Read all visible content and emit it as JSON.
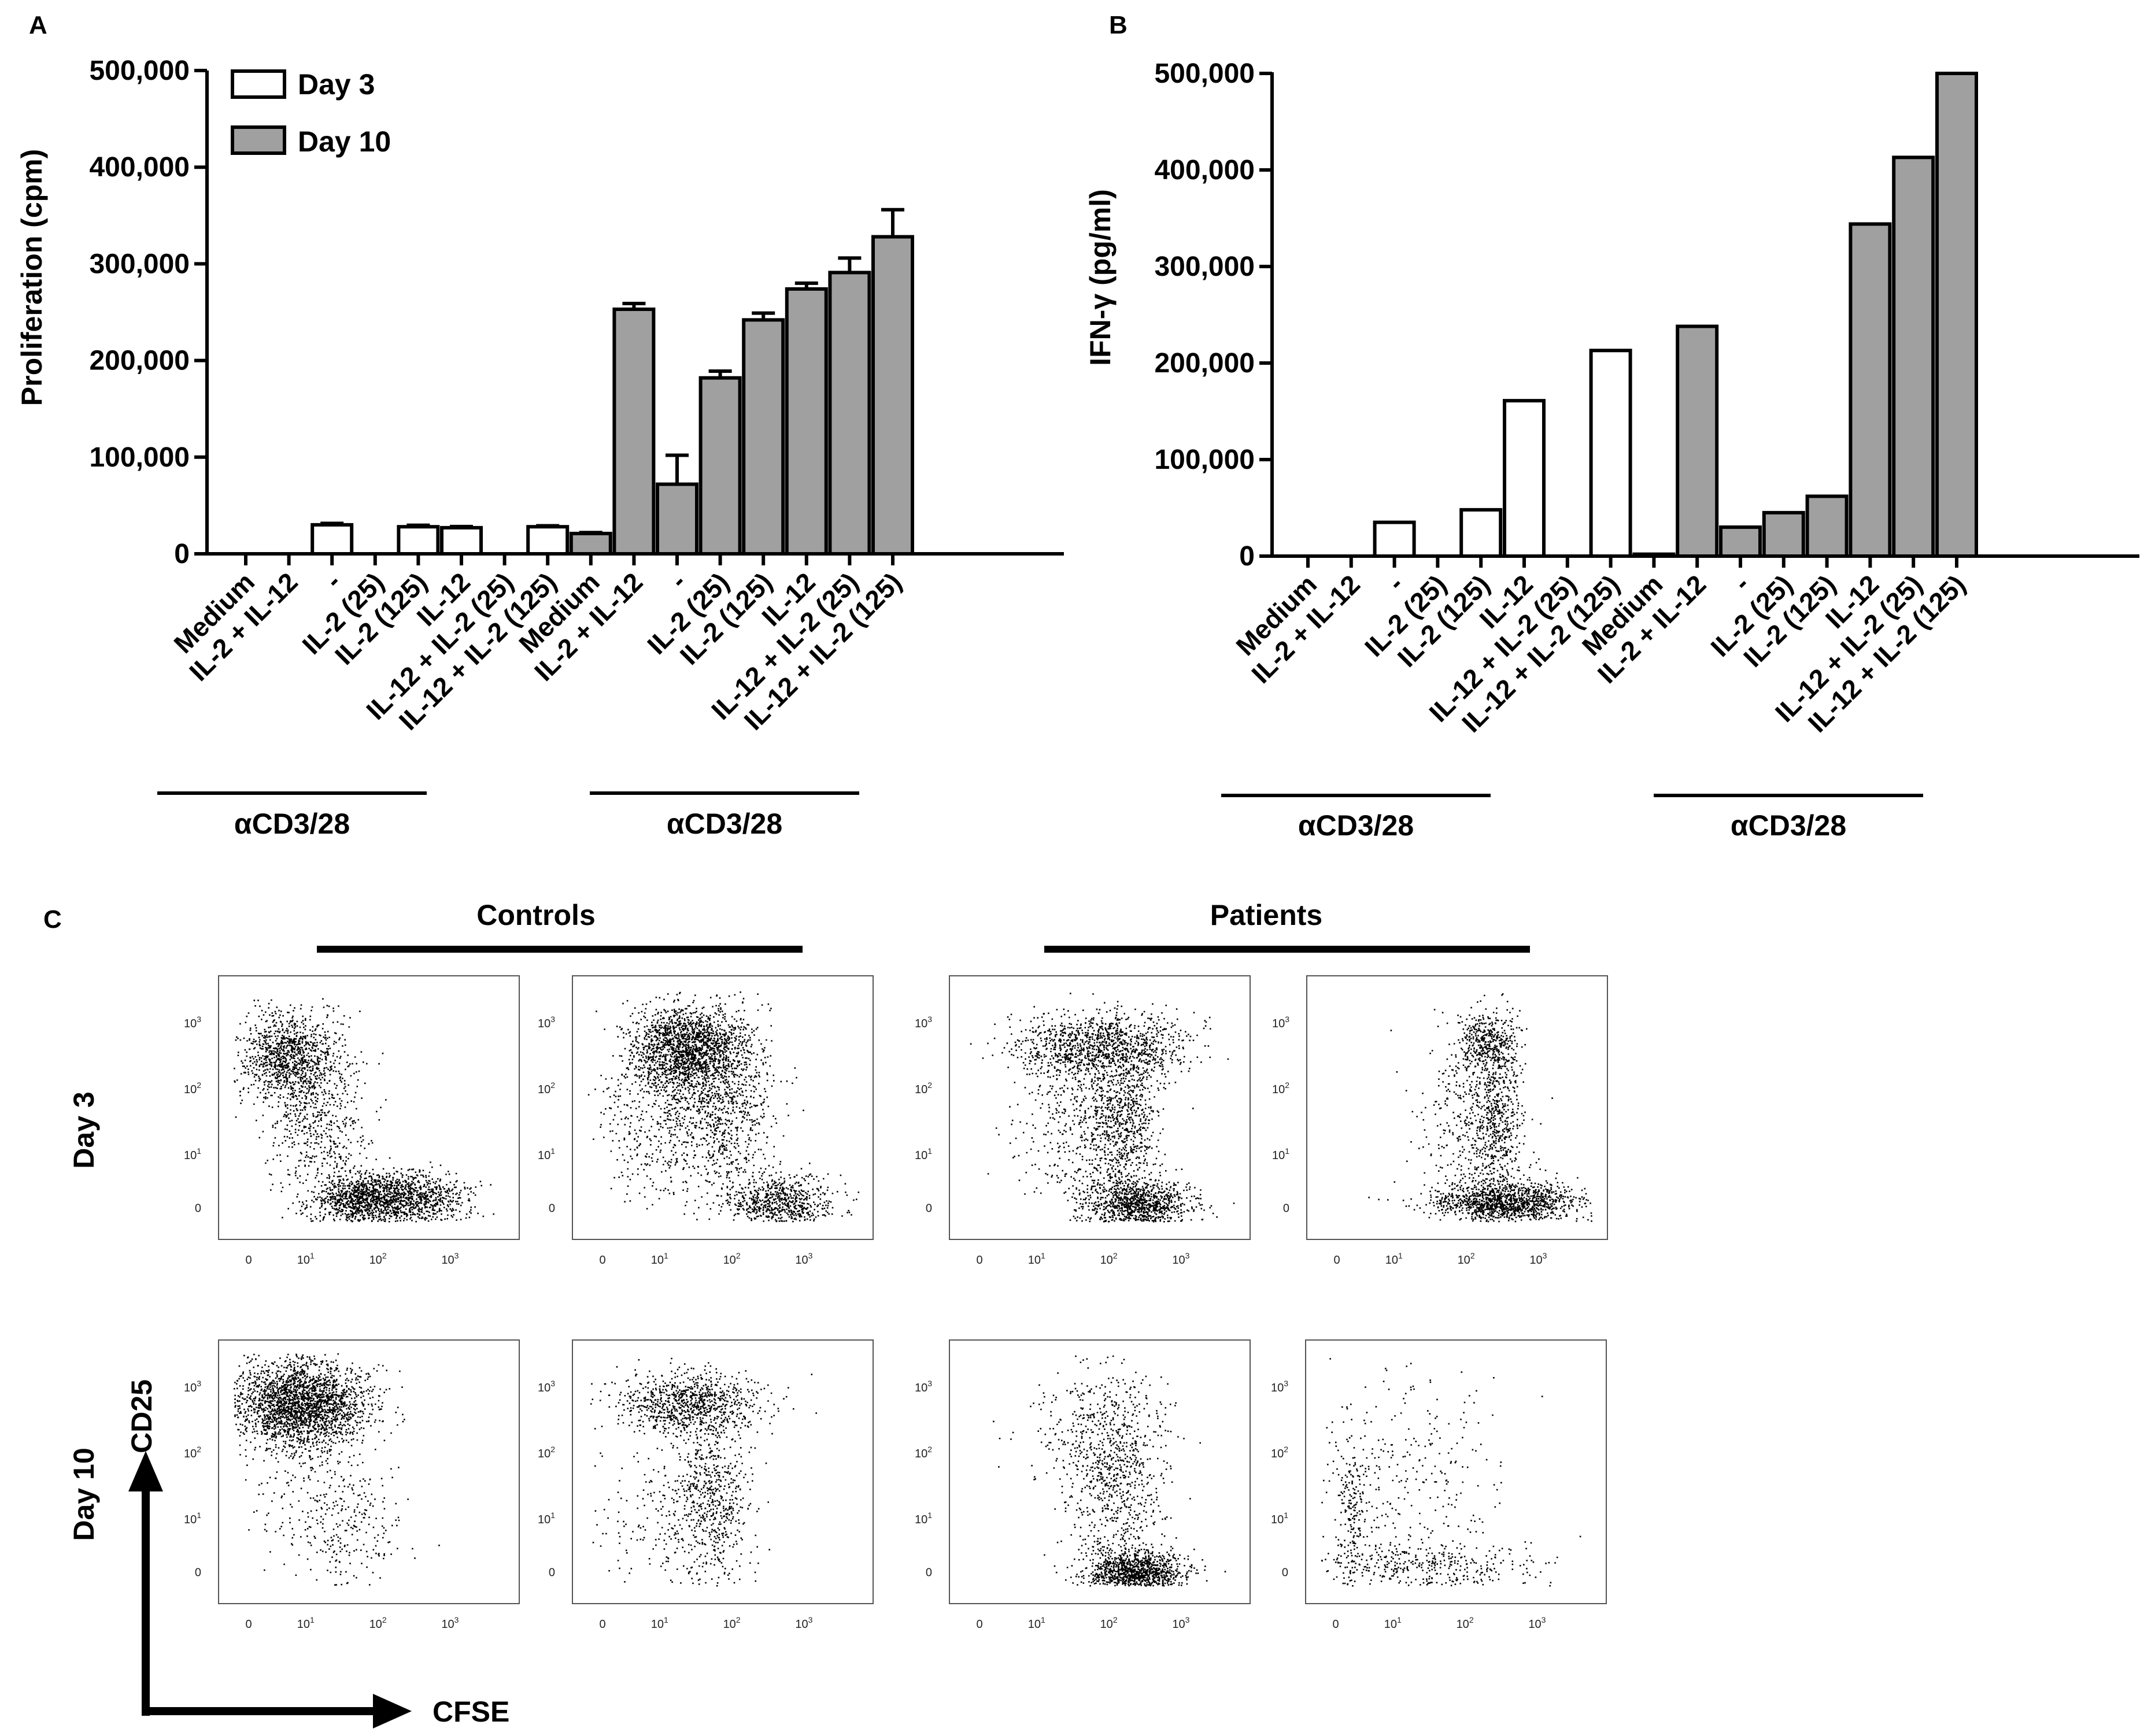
{
  "figure": {
    "panel_letters": [
      "A",
      "B",
      "C"
    ],
    "group_label": "αCD3/28",
    "controls_label": "Controls",
    "patients_label": "Patients",
    "row_labels": [
      "Day 3",
      "Day 10"
    ],
    "x_axis_label": "CFSE",
    "y_axis_label": "CD25",
    "flow_ticks": [
      "0",
      "10",
      "10",
      "10"
    ],
    "flow_tick_exponents": [
      "",
      "1",
      "2",
      "3"
    ]
  },
  "colors": {
    "day3": "#ffffff",
    "day10": "#a0a0a0",
    "stroke": "#000000"
  },
  "chart_data": [
    {
      "type": "bar",
      "panel": "A",
      "ylabel": "Proliferation (cpm)",
      "ylim": [
        0,
        500000
      ],
      "yticks": [
        0,
        100000,
        200000,
        300000,
        400000,
        500000
      ],
      "ytick_labels": [
        "0",
        "100,000",
        "200,000",
        "300,000",
        "400,000",
        "500,000"
      ],
      "legend": [
        "Day 3",
        "Day 10"
      ],
      "legend_position": "top-left",
      "categories": [
        "Medium",
        "IL-2 + IL-12",
        "-",
        "IL-2 (25)",
        "IL-2 (125)",
        "IL-12",
        "IL-12 + IL-2 (25)",
        "IL-12 + IL-2 (125)",
        "Medium",
        "IL-2 + IL-12",
        "-",
        "IL-2 (25)",
        "IL-2 (125)",
        "IL-12",
        "IL-12 + IL-2 (25)",
        "IL-12 + IL-2 (125)"
      ],
      "series_index": [
        0,
        0,
        0,
        0,
        0,
        0,
        0,
        0,
        1,
        1,
        1,
        1,
        1,
        1,
        1,
        1
      ],
      "values": [
        0,
        0,
        30000,
        0,
        28000,
        27000,
        0,
        28000,
        21000,
        253000,
        72000,
        182000,
        242000,
        274000,
        291000,
        328000
      ],
      "errors": [
        0,
        0,
        1500,
        0,
        1500,
        1200,
        0,
        1000,
        1000,
        6000,
        30000,
        7000,
        7000,
        6000,
        15000,
        28000
      ]
    },
    {
      "type": "bar",
      "panel": "B",
      "ylabel": "IFN-γ (pg/ml)",
      "ylim": [
        0,
        500000
      ],
      "yticks": [
        0,
        100000,
        200000,
        300000,
        400000,
        500000
      ],
      "ytick_labels": [
        "0",
        "100,000",
        "200,000",
        "300,000",
        "400,000",
        "500,000"
      ],
      "categories": [
        "Medium",
        "IL-2 + IL-12",
        "-",
        "IL-2 (25)",
        "IL-2 (125)",
        "IL-12",
        "IL-12 + IL-2 (25)",
        "IL-12 + IL-2 (125)",
        "Medium",
        "IL-2 + IL-12",
        "-",
        "IL-2 (25)",
        "IL-2 (125)",
        "IL-12",
        "IL-12 + IL-2 (25)",
        "IL-12 + IL-2 (125)"
      ],
      "series_index": [
        0,
        0,
        0,
        0,
        0,
        0,
        0,
        0,
        1,
        1,
        1,
        1,
        1,
        1,
        1,
        1
      ],
      "values": [
        0,
        0,
        35000,
        0,
        48000,
        161000,
        0,
        213000,
        2000,
        238000,
        30000,
        45000,
        62000,
        344000,
        413000,
        500000
      ]
    }
  ]
}
